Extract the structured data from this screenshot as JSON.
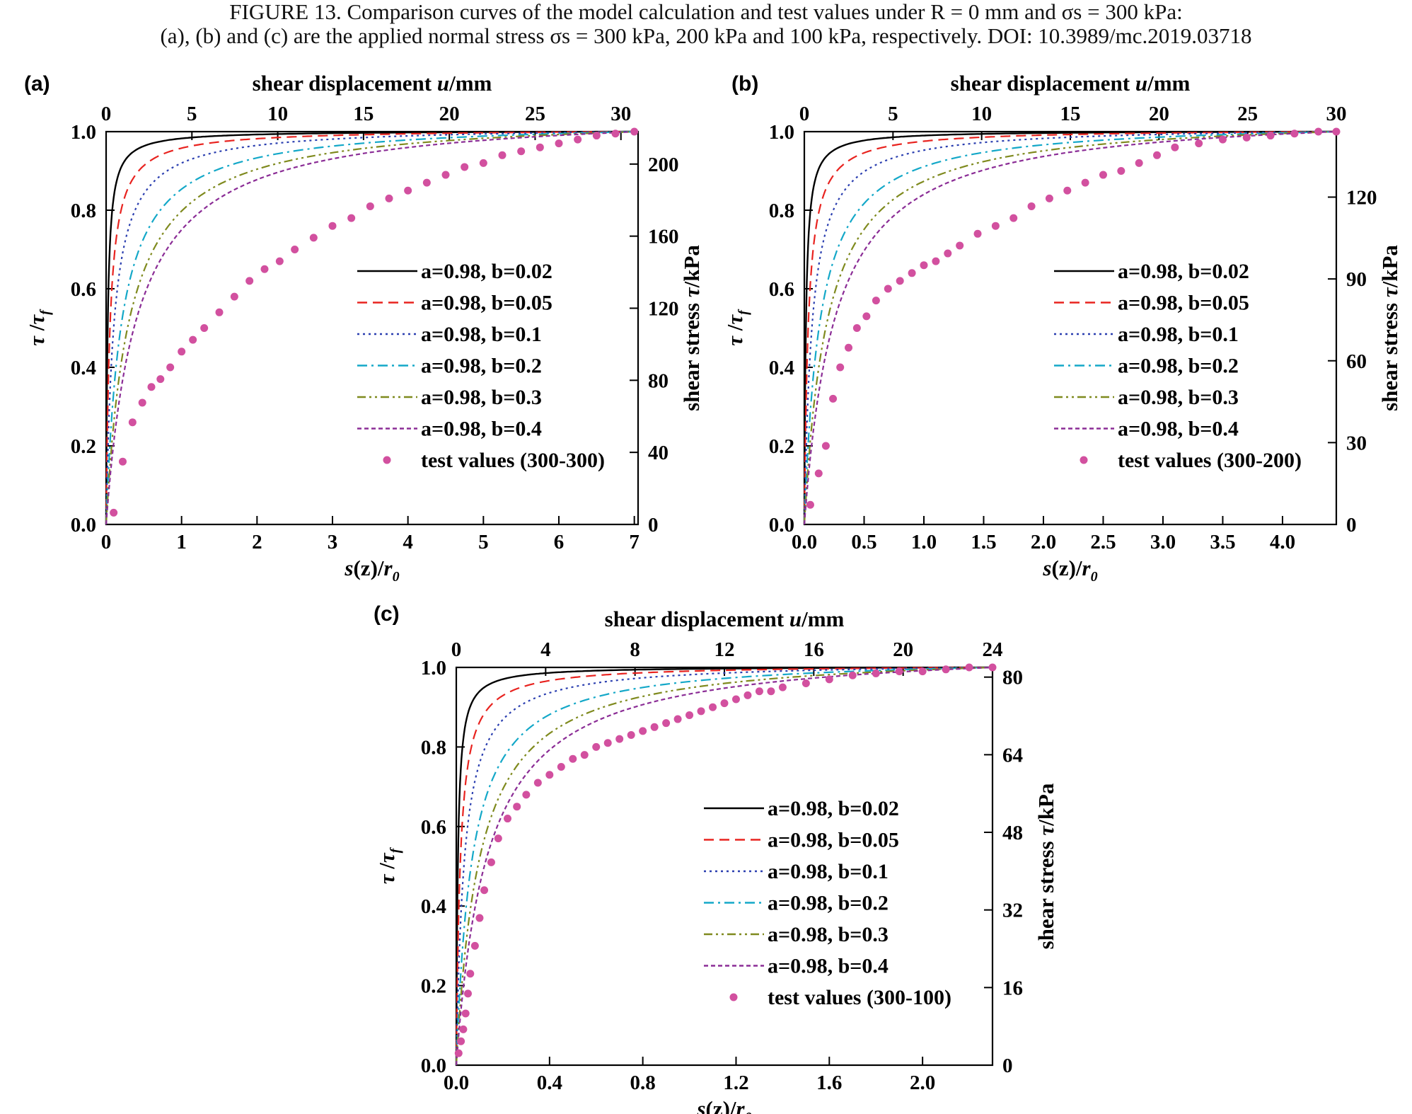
{
  "caption": {
    "line1": "FIGURE 13.    Comparison curves of the model calculation and test values under R = 0 mm and σs = 300 kPa:",
    "line2": "(a), (b) and (c) are the applied normal stress σs = 300 kPa, 200 kPa and 100 kPa, respectively. DOI: 10.3989/mc.2019.03718"
  },
  "colors": {
    "b002": "#000000",
    "b005": "#e8231f",
    "b01": "#2b3fb0",
    "b02": "#14a8c8",
    "b03": "#7f8a1e",
    "b04": "#8b2d96",
    "test": "#d2509f"
  },
  "chart_data": [
    {
      "panel": "(a)",
      "type": "line",
      "xlabel": "s(z)/r0",
      "ylabel": "τ/τf",
      "top_xlabel": "shear displacement u/mm",
      "right_ylabel": "shear stress τ/kPa",
      "xlim": [
        0,
        7.05
      ],
      "ylim": [
        0,
        1.0
      ],
      "xticks": [
        "0",
        "1",
        "2",
        "3",
        "4",
        "5",
        "6",
        "7"
      ],
      "yticks": [
        "0.0",
        "0.2",
        "0.4",
        "0.6",
        "0.8",
        "1.0"
      ],
      "top_xlim": [
        0,
        31
      ],
      "top_xticks": [
        "0",
        "5",
        "10",
        "15",
        "20",
        "25",
        "30"
      ],
      "right_ylim": [
        0,
        218
      ],
      "right_yticks": [
        "0",
        "40",
        "80",
        "120",
        "160",
        "200"
      ],
      "legend_position": "center-right",
      "model": {
        "a": 0.98
      },
      "series": [
        {
          "name": "a=0.98, b=0.02",
          "b": 0.02,
          "style": "solid"
        },
        {
          "name": "a=0.98, b=0.05",
          "b": 0.05,
          "style": "dashed"
        },
        {
          "name": "a=0.98, b=0.1",
          "b": 0.1,
          "style": "dotted"
        },
        {
          "name": "a=0.98, b=0.2",
          "b": 0.2,
          "style": "dashdot"
        },
        {
          "name": "a=0.98, b=0.3",
          "b": 0.3,
          "style": "dashdotdot"
        },
        {
          "name": "a=0.98, b=0.4",
          "b": 0.4,
          "style": "shortdash"
        }
      ],
      "test_values": {
        "name": "test values (300-300)",
        "x": [
          0.1,
          0.22,
          0.35,
          0.48,
          0.6,
          0.72,
          0.85,
          1.0,
          1.15,
          1.3,
          1.5,
          1.7,
          1.9,
          2.1,
          2.3,
          2.5,
          2.75,
          3.0,
          3.25,
          3.5,
          3.75,
          4.0,
          4.25,
          4.5,
          4.75,
          5.0,
          5.25,
          5.5,
          5.75,
          6.0,
          6.25,
          6.5,
          6.75,
          7.0
        ],
        "y": [
          0.03,
          0.16,
          0.26,
          0.31,
          0.35,
          0.37,
          0.4,
          0.44,
          0.47,
          0.5,
          0.54,
          0.58,
          0.62,
          0.65,
          0.67,
          0.7,
          0.73,
          0.76,
          0.78,
          0.81,
          0.83,
          0.85,
          0.87,
          0.89,
          0.91,
          0.92,
          0.94,
          0.95,
          0.96,
          0.97,
          0.98,
          0.99,
          0.995,
          1.0
        ]
      }
    },
    {
      "panel": "(b)",
      "type": "line",
      "xlabel": "s(z)/r0",
      "ylabel": "τ/τf",
      "top_xlabel": "shear displacement u/mm",
      "right_ylabel": "shear stress τ/kPa",
      "xlim": [
        0,
        4.45
      ],
      "ylim": [
        0,
        1.0
      ],
      "xticks": [
        "0.0",
        "0.5",
        "1.0",
        "1.5",
        "2.0",
        "2.5",
        "3.0",
        "3.5",
        "4.0"
      ],
      "yticks": [
        "0.0",
        "0.2",
        "0.4",
        "0.6",
        "0.8",
        "1.0"
      ],
      "top_xlim": [
        0,
        30
      ],
      "top_xticks": [
        "0",
        "5",
        "10",
        "15",
        "20",
        "25",
        "30"
      ],
      "right_ylim": [
        0,
        144
      ],
      "right_yticks": [
        "0",
        "30",
        "60",
        "90",
        "120"
      ],
      "legend_position": "center-right",
      "model": {
        "a": 0.98
      },
      "series": [
        {
          "name": "a=0.98, b=0.02",
          "b": 0.02,
          "style": "solid"
        },
        {
          "name": "a=0.98, b=0.05",
          "b": 0.05,
          "style": "dashed"
        },
        {
          "name": "a=0.98, b=0.1",
          "b": 0.1,
          "style": "dotted"
        },
        {
          "name": "a=0.98, b=0.2",
          "b": 0.2,
          "style": "dashdot"
        },
        {
          "name": "a=0.98, b=0.3",
          "b": 0.3,
          "style": "dashdotdot"
        },
        {
          "name": "a=0.98, b=0.4",
          "b": 0.4,
          "style": "shortdash"
        }
      ],
      "test_values": {
        "name": "test values (300-200)",
        "x": [
          0.05,
          0.12,
          0.18,
          0.24,
          0.3,
          0.37,
          0.44,
          0.52,
          0.6,
          0.7,
          0.8,
          0.9,
          1.0,
          1.1,
          1.2,
          1.3,
          1.45,
          1.6,
          1.75,
          1.9,
          2.05,
          2.2,
          2.35,
          2.5,
          2.65,
          2.8,
          2.95,
          3.1,
          3.3,
          3.5,
          3.7,
          3.9,
          4.1,
          4.3,
          4.45
        ],
        "y": [
          0.05,
          0.13,
          0.2,
          0.32,
          0.4,
          0.45,
          0.5,
          0.53,
          0.57,
          0.6,
          0.62,
          0.64,
          0.66,
          0.67,
          0.69,
          0.71,
          0.74,
          0.76,
          0.78,
          0.81,
          0.83,
          0.85,
          0.87,
          0.89,
          0.9,
          0.92,
          0.94,
          0.96,
          0.97,
          0.98,
          0.985,
          0.99,
          0.995,
          1.0,
          1.0
        ]
      }
    },
    {
      "panel": "(c)",
      "type": "line",
      "xlabel": "s(z)/r0",
      "ylabel": "τ/τf",
      "top_xlabel": "shear displacement u/mm",
      "right_ylabel": "shear stress τ/kPa",
      "xlim": [
        0,
        2.3
      ],
      "ylim": [
        0,
        1.0
      ],
      "xticks": [
        "0.0",
        "0.4",
        "0.8",
        "1.2",
        "1.6",
        "2.0"
      ],
      "yticks": [
        "0.0",
        "0.2",
        "0.4",
        "0.6",
        "0.8",
        "1.0"
      ],
      "top_xlim": [
        0,
        24
      ],
      "top_xticks": [
        "0",
        "4",
        "8",
        "12",
        "16",
        "20",
        "24"
      ],
      "right_ylim": [
        0,
        82
      ],
      "right_yticks": [
        "0",
        "16",
        "32",
        "48",
        "64",
        "80"
      ],
      "legend_position": "center-right",
      "model": {
        "a": 0.98
      },
      "series": [
        {
          "name": "a=0.98, b=0.02",
          "b": 0.02,
          "style": "solid"
        },
        {
          "name": "a=0.98, b=0.05",
          "b": 0.05,
          "style": "dashed"
        },
        {
          "name": "a=0.98, b=0.1",
          "b": 0.1,
          "style": "dotted"
        },
        {
          "name": "a=0.98, b=0.2",
          "b": 0.2,
          "style": "dashdot"
        },
        {
          "name": "a=0.98, b=0.3",
          "b": 0.3,
          "style": "dashdotdot"
        },
        {
          "name": "a=0.98, b=0.4",
          "b": 0.4,
          "style": "shortdash"
        }
      ],
      "test_values": {
        "name": "test values (300-100)",
        "x": [
          0.01,
          0.02,
          0.03,
          0.04,
          0.05,
          0.06,
          0.08,
          0.1,
          0.12,
          0.15,
          0.18,
          0.22,
          0.26,
          0.3,
          0.35,
          0.4,
          0.45,
          0.5,
          0.55,
          0.6,
          0.65,
          0.7,
          0.75,
          0.8,
          0.85,
          0.9,
          0.95,
          1.0,
          1.05,
          1.1,
          1.15,
          1.2,
          1.25,
          1.3,
          1.35,
          1.4,
          1.5,
          1.6,
          1.7,
          1.8,
          1.9,
          2.0,
          2.1,
          2.2,
          2.3
        ],
        "y": [
          0.03,
          0.06,
          0.09,
          0.13,
          0.18,
          0.23,
          0.3,
          0.37,
          0.44,
          0.51,
          0.57,
          0.62,
          0.65,
          0.68,
          0.71,
          0.73,
          0.75,
          0.77,
          0.78,
          0.8,
          0.81,
          0.82,
          0.83,
          0.84,
          0.85,
          0.86,
          0.87,
          0.88,
          0.89,
          0.9,
          0.91,
          0.92,
          0.93,
          0.94,
          0.94,
          0.95,
          0.96,
          0.97,
          0.98,
          0.985,
          0.99,
          0.99,
          0.995,
          1.0,
          1.0
        ]
      }
    }
  ]
}
